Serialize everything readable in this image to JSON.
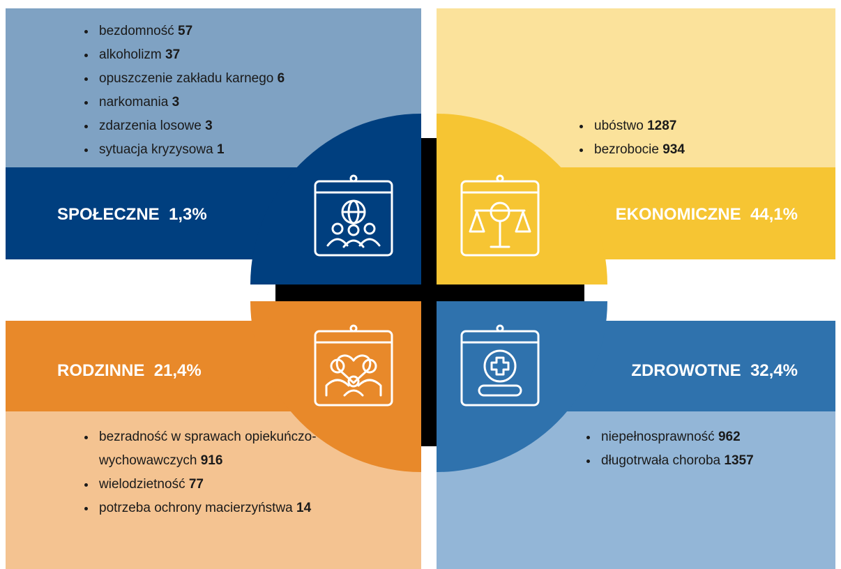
{
  "sections": [
    {
      "title": "SPOŁECZNE",
      "percent": "1,3%",
      "items": [
        {
          "name": "bezdomność",
          "count": 57
        },
        {
          "name": "alkoholizm",
          "count": 37
        },
        {
          "name": "opuszczenie zakładu karnego",
          "count": 6
        },
        {
          "name": "narkomania",
          "count": 3
        },
        {
          "name": "zdarzenia losowe",
          "count": 3
        },
        {
          "name": "sytuacja kryzysowa",
          "count": 1
        }
      ]
    },
    {
      "title": "EKONOMICZNE",
      "percent": "44,1%",
      "items": [
        {
          "name": "ubóstwo",
          "count": 1287
        },
        {
          "name": "bezrobocie",
          "count": 934
        }
      ]
    },
    {
      "title": "RODZINNE",
      "percent": "21,4%",
      "items": [
        {
          "name": "bezradność w sprawach opiekuńczo-wychowawczych",
          "count": 916
        },
        {
          "name": "wielodzietność",
          "count": 77
        },
        {
          "name": "potrzeba ochrony macierzyństwa",
          "count": 14
        }
      ]
    },
    {
      "title": "ZDROWOTNE",
      "percent": "32,4%",
      "items": [
        {
          "name": "niepełnosprawność",
          "count": 962
        },
        {
          "name": "długotrwała choroba",
          "count": 1357
        }
      ]
    }
  ]
}
